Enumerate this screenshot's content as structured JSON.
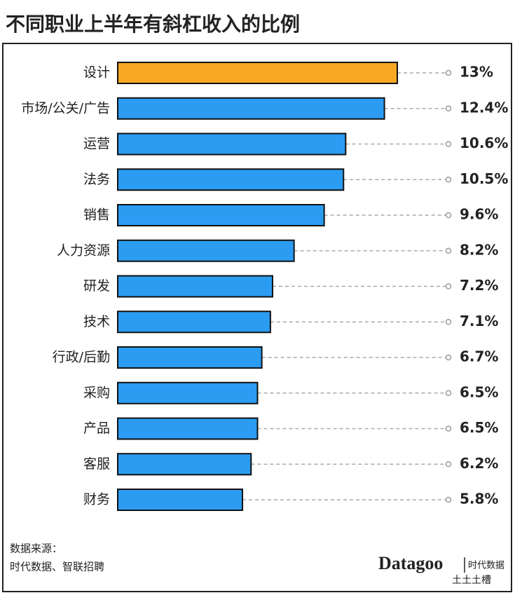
{
  "chart_data": {
    "type": "bar",
    "orientation": "horizontal",
    "title": "不同职业上半年有斜杠收入的比例",
    "categories": [
      "设计",
      "市场/公关/广告",
      "运营",
      "法务",
      "销售",
      "人力资源",
      "研发",
      "技术",
      "行政/后勤",
      "采购",
      "产品",
      "客服",
      "财务"
    ],
    "values": [
      13,
      12.4,
      10.6,
      10.5,
      9.6,
      8.2,
      7.2,
      7.1,
      6.7,
      6.5,
      6.5,
      6.2,
      5.8
    ],
    "value_labels": [
      "13%",
      "12.4%",
      "10.6%",
      "10.5%",
      "9.6%",
      "8.2%",
      "7.2%",
      "7.1%",
      "6.7%",
      "6.5%",
      "6.5%",
      "6.2%",
      "5.8%"
    ],
    "colors": [
      "#f7a823",
      "#2b9cf2",
      "#2b9cf2",
      "#2b9cf2",
      "#2b9cf2",
      "#2b9cf2",
      "#2b9cf2",
      "#2b9cf2",
      "#2b9cf2",
      "#2b9cf2",
      "#2b9cf2",
      "#2b9cf2",
      "#2b9cf2"
    ],
    "source": [
      "数据来源：",
      "时代数据、智联招聘"
    ],
    "logo": [
      "Datagoo",
      "时代数据"
    ],
    "watermark": "土土土槽"
  }
}
